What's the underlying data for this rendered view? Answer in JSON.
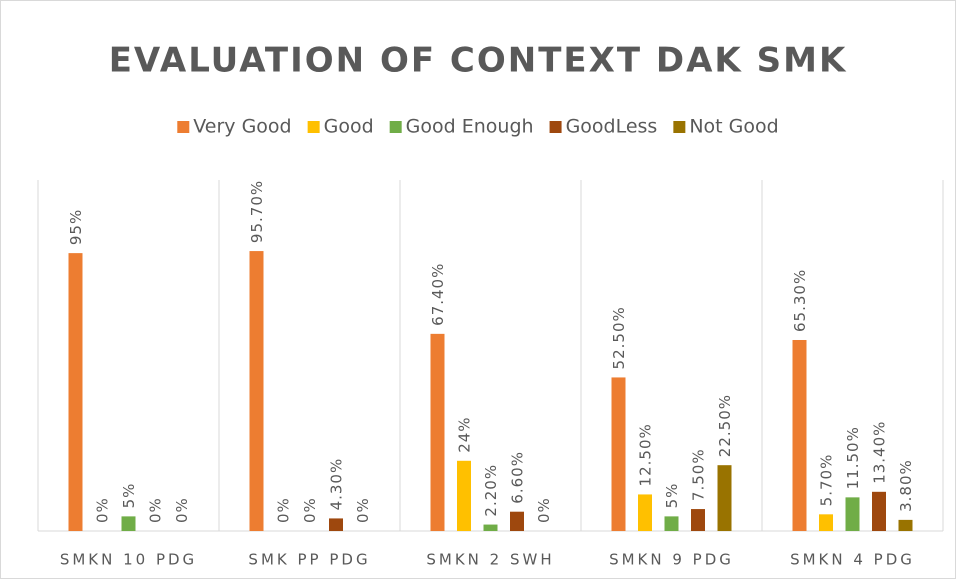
{
  "chart_data": {
    "type": "bar",
    "title": "EVALUATION OF CONTEXT DAK SMK",
    "categories": [
      "SMKN 10 PDG",
      "SMK PP PDG",
      "SMKN 2 SWH",
      "SMKN 9 PDG",
      "SMKN 4 PDG"
    ],
    "series": [
      {
        "name": "Very Good",
        "color": "#ed7d31",
        "values": [
          95,
          95.7,
          67.4,
          52.5,
          65.3
        ],
        "value_labels": [
          "95%",
          "95.70%",
          "67.40%",
          "52.50%",
          "65.30%"
        ]
      },
      {
        "name": "Good",
        "color": "#ffc000",
        "values": [
          0,
          0,
          24,
          12.5,
          5.7
        ],
        "value_labels": [
          "0%",
          "0%",
          "24%",
          "12.50%",
          "5.70%"
        ]
      },
      {
        "name": "Good Enough",
        "color": "#70ad47",
        "values": [
          5,
          0,
          2.2,
          5,
          11.5
        ],
        "value_labels": [
          "5%",
          "0%",
          "2.20%",
          "5%",
          "11.50%"
        ]
      },
      {
        "name": "GoodLess",
        "color": "#9e480e",
        "values": [
          0,
          4.3,
          6.6,
          7.5,
          13.4
        ],
        "value_labels": [
          "0%",
          "4.30%",
          "6.60%",
          "7.50%",
          "13.40%"
        ]
      },
      {
        "name": "Not Good",
        "color": "#997300",
        "values": [
          0,
          0,
          0,
          22.5,
          3.8
        ],
        "value_labels": [
          "0%",
          "0%",
          "0%",
          "22.50%",
          "3.80%"
        ]
      }
    ],
    "ylim": [
      0,
      120
    ],
    "legend": "top"
  }
}
